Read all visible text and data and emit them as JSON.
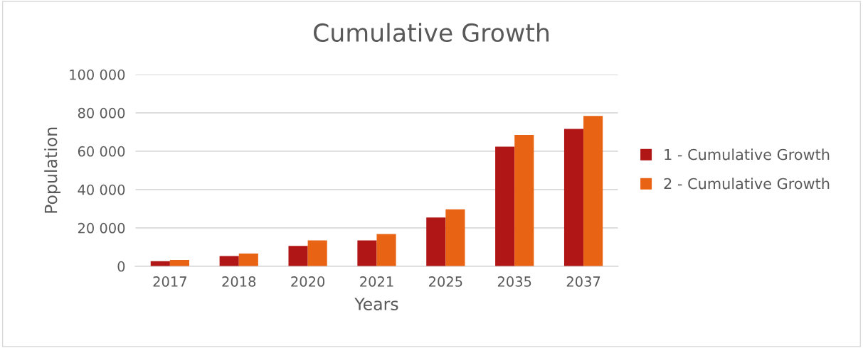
{
  "chart_data": {
    "type": "bar",
    "title": "Cumulative Growth",
    "xlabel": "Years",
    "ylabel": "Population",
    "categories": [
      "2017",
      "2018",
      "2020",
      "2021",
      "2025",
      "2035",
      "2037"
    ],
    "series": [
      {
        "name": "1 - Cumulative Growth",
        "color": "#b11616",
        "values": [
          2600,
          5300,
          10600,
          13500,
          25400,
          62400,
          71600
        ]
      },
      {
        "name": "2 - Cumulative Growth",
        "color": "#e96314",
        "values": [
          3300,
          6600,
          13500,
          16800,
          29700,
          68500,
          78400
        ]
      }
    ],
    "ylim": [
      0,
      100000
    ],
    "yticks": [
      {
        "value": 0,
        "label": "0"
      },
      {
        "value": 20000,
        "label": "20 000"
      },
      {
        "value": 40000,
        "label": "40 000"
      },
      {
        "value": 60000,
        "label": "60 000"
      },
      {
        "value": 80000,
        "label": "80 000"
      },
      {
        "value": 100000,
        "label": "100 000"
      }
    ],
    "grid": "y",
    "legend": "right"
  }
}
